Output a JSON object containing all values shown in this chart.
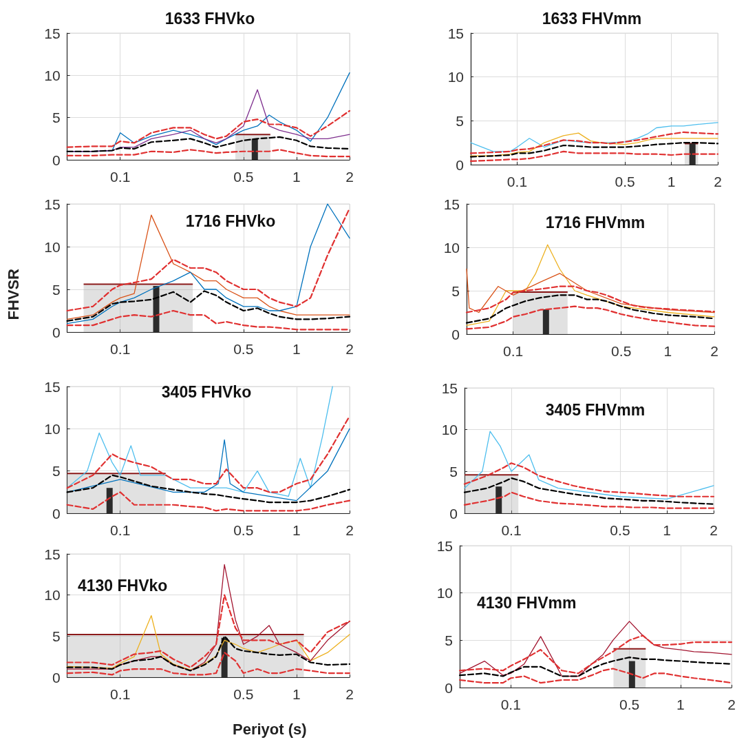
{
  "chart_data": [
    {
      "type": "line",
      "title": "1633 FHVko",
      "xlim": [
        0.05,
        2
      ],
      "ylim": [
        0,
        15
      ],
      "xticks": [
        0.1,
        0.5,
        1,
        2
      ],
      "yticks": [
        0,
        5,
        10,
        15
      ],
      "log": "x",
      "grid": true,
      "marker": "none",
      "x": [
        0.05,
        0.07,
        0.09,
        0.1,
        0.12,
        0.15,
        0.2,
        0.25,
        0.3,
        0.35,
        0.4,
        0.5,
        0.6,
        0.7,
        0.8,
        1,
        1.2,
        1.5,
        2
      ],
      "series": [
        {
          "type": "area",
          "color": "#8b1a1a",
          "x": [
            0.45,
            0.71
          ],
          "values": [
            3,
            3
          ]
        },
        {
          "type": "bar",
          "color": "#2b2b2b",
          "x": [
            0.58
          ],
          "values": [
            2.5
          ]
        },
        {
          "color": "#0072bd",
          "values": [
            1,
            1,
            1.1,
            3.2,
            2.0,
            2.8,
            3.5,
            3.0,
            2.5,
            1.8,
            2.5,
            3.5,
            4,
            5.3,
            4.5,
            3.5,
            2.2,
            5,
            10.3
          ]
        },
        {
          "color": "#7e2f8e",
          "values": [
            1,
            1,
            1.1,
            1.5,
            1.5,
            2.5,
            3,
            3.5,
            2.5,
            2,
            2.5,
            4,
            8.3,
            4,
            3.5,
            3,
            2.5,
            2.5,
            3
          ]
        },
        {
          "color": "#e03030",
          "line_style": "dashed",
          "values": [
            1.5,
            1.6,
            1.6,
            2.2,
            2.0,
            3.2,
            3.8,
            3.8,
            3.0,
            2.5,
            2.8,
            4.5,
            4.8,
            4.2,
            4.2,
            3.8,
            2.8,
            4,
            5.8
          ]
        },
        {
          "color": "#e03030",
          "line_style": "dashed",
          "values": [
            0.5,
            0.5,
            0.6,
            0.6,
            0.6,
            1.0,
            0.9,
            1.2,
            1.0,
            0.8,
            0.9,
            1.0,
            1.0,
            1.0,
            1.2,
            0.8,
            0.5,
            0.4,
            0.4
          ]
        },
        {
          "color": "#000000",
          "line_style": "dashed",
          "values": [
            1,
            1,
            1.1,
            1.4,
            1.3,
            2.1,
            2.3,
            2.5,
            2.0,
            1.5,
            1.8,
            2.3,
            2.5,
            2.6,
            2.7,
            2.3,
            1.6,
            1.4,
            1.3
          ]
        }
      ]
    },
    {
      "type": "line",
      "title": "1633 FHVmm",
      "xlim": [
        0.05,
        2
      ],
      "ylim": [
        0,
        15
      ],
      "xticks": [
        0.1,
        0.5,
        1,
        2
      ],
      "yticks": [
        0,
        5,
        10,
        15
      ],
      "log": "x",
      "grid": true,
      "marker": "none",
      "x": [
        0.05,
        0.07,
        0.09,
        0.1,
        0.12,
        0.15,
        0.2,
        0.25,
        0.3,
        0.35,
        0.4,
        0.5,
        0.6,
        0.7,
        0.8,
        1,
        1.2,
        1.5,
        2
      ],
      "series": [
        {
          "type": "area",
          "color": "#8b1a1a",
          "x": [
            1.22,
            1.49
          ],
          "values": [
            2.4,
            2.4
          ]
        },
        {
          "type": "bar",
          "color": "#2b2b2b",
          "x": [
            1.37
          ],
          "values": [
            2.4
          ]
        },
        {
          "color": "#4dbeee",
          "values": [
            2.5,
            1.5,
            1.5,
            2.0,
            3.0,
            2.0,
            2.8,
            2.6,
            2.5,
            2.5,
            2.5,
            2.6,
            3.0,
            3.5,
            4.2,
            4.4,
            4.4,
            4.6,
            4.8
          ]
        },
        {
          "color": "#edb120",
          "values": [
            1,
            1,
            1.2,
            1.4,
            1.5,
            2.5,
            3.3,
            3.6,
            2.7,
            2.5,
            2.4,
            2.3,
            2.5,
            2.8,
            3,
            3,
            3,
            3,
            3
          ]
        },
        {
          "color": "#e03030",
          "line_style": "dashed",
          "values": [
            1.3,
            1.4,
            1.5,
            1.7,
            1.8,
            2.2,
            2.8,
            2.7,
            2.5,
            2.5,
            2.4,
            2.6,
            2.8,
            3.0,
            3.2,
            3.5,
            3.7,
            3.6,
            3.5
          ]
        },
        {
          "color": "#e03030",
          "line_style": "dashed",
          "values": [
            0.4,
            0.5,
            0.6,
            0.6,
            0.7,
            1.0,
            1.5,
            1.3,
            1.3,
            1.3,
            1.3,
            1.3,
            1.2,
            1.2,
            1.2,
            1.1,
            1.2,
            1.2,
            1.2
          ]
        },
        {
          "color": "#000000",
          "line_style": "dashed",
          "values": [
            0.9,
            1.0,
            1.1,
            1.3,
            1.3,
            1.6,
            2.2,
            2.1,
            2.0,
            2.0,
            2.0,
            2.0,
            2.1,
            2.2,
            2.3,
            2.4,
            2.5,
            2.5,
            2.4
          ]
        }
      ]
    },
    {
      "type": "line",
      "title": "1716 FHVko",
      "ylabel": "FHVSR",
      "xlim": [
        0.05,
        2
      ],
      "ylim": [
        0,
        15
      ],
      "xticks": [
        0.1,
        0.5,
        1,
        2
      ],
      "yticks": [
        0,
        5,
        10,
        15
      ],
      "log": "x",
      "grid": true,
      "marker": "none",
      "x": [
        0.05,
        0.07,
        0.09,
        0.1,
        0.12,
        0.15,
        0.2,
        0.25,
        0.3,
        0.35,
        0.4,
        0.5,
        0.6,
        0.7,
        0.8,
        1,
        1.2,
        1.5,
        2
      ],
      "series": [
        {
          "type": "area",
          "color": "#8b1a1a",
          "x": [
            0.062,
            0.258
          ],
          "values": [
            5.6,
            5.6
          ]
        },
        {
          "type": "bar",
          "color": "#2b2b2b",
          "x": [
            0.16
          ],
          "values": [
            5.4
          ]
        },
        {
          "color": "#d95319",
          "values": [
            1.5,
            2,
            3.5,
            4,
            4.5,
            13.7,
            8,
            7,
            6,
            6,
            5,
            4,
            4,
            3,
            2.5,
            2,
            2,
            2,
            2
          ]
        },
        {
          "color": "#0072bd",
          "values": [
            1,
            1.5,
            3,
            3.5,
            4,
            5,
            6,
            7,
            5,
            5,
            4,
            3,
            3,
            2.5,
            2.5,
            3,
            10,
            15,
            11
          ]
        },
        {
          "color": "#e03030",
          "line_style": "dashed",
          "values": [
            2.5,
            3,
            5,
            5.5,
            5.8,
            6.2,
            8.5,
            7.5,
            7.5,
            7,
            6,
            5,
            5,
            4,
            3.5,
            3,
            4,
            9,
            14.5
          ]
        },
        {
          "color": "#e03030",
          "line_style": "dashed",
          "values": [
            0.8,
            0.8,
            1.5,
            1.8,
            2.0,
            1.8,
            2.5,
            2.0,
            2.0,
            1.0,
            1.2,
            0.8,
            0.6,
            0.6,
            0.5,
            0.3,
            0.3,
            0.3,
            0.3
          ]
        },
        {
          "color": "#000000",
          "line_style": "dashed",
          "values": [
            1.3,
            1.8,
            3.3,
            3.5,
            3.6,
            3.8,
            4.7,
            3.5,
            4.8,
            4.3,
            3.5,
            2.5,
            2.8,
            2.2,
            1.8,
            1.5,
            1.5,
            1.6,
            1.8
          ]
        }
      ]
    },
    {
      "type": "line",
      "title": "1716 FHVmm",
      "xlim": [
        0.05,
        2
      ],
      "ylim": [
        0,
        15
      ],
      "xticks": [
        0.1,
        0.5,
        1,
        2
      ],
      "yticks": [
        0,
        5,
        10,
        15
      ],
      "log": "x",
      "grid": true,
      "marker": "none",
      "x": [
        0.05,
        0.07,
        0.09,
        0.1,
        0.12,
        0.15,
        0.2,
        0.25,
        0.3,
        0.35,
        0.4,
        0.5,
        0.6,
        0.7,
        0.8,
        1,
        1.2,
        1.5,
        2
      ],
      "series": [
        {
          "type": "area",
          "color": "#8b1a1a",
          "x": [
            0.1,
            0.225
          ],
          "values": [
            4.85,
            4.85
          ]
        },
        {
          "type": "bar",
          "color": "#2b2b2b",
          "x": [
            0.163
          ],
          "values": [
            2.85
          ]
        },
        {
          "color": "#edb120",
          "x": [
            0.05,
            0.07,
            0.09,
            0.12,
            0.14,
            0.167,
            0.2,
            0.25,
            0.3,
            0.5,
            1,
            2
          ],
          "values": [
            1,
            1.5,
            5,
            5,
            7,
            10.3,
            7.5,
            5,
            4.5,
            3.2,
            2.5,
            2
          ]
        },
        {
          "color": "#d95319",
          "x": [
            0.05,
            0.052,
            0.06,
            0.08,
            0.1,
            0.15,
            0.2,
            0.3,
            0.5,
            1,
            2
          ],
          "values": [
            7.5,
            3,
            2.5,
            5.5,
            4.5,
            6,
            7,
            5,
            3.5,
            2.8,
            2.5
          ]
        },
        {
          "color": "#e03030",
          "line_style": "dashed",
          "values": [
            2.5,
            3,
            4,
            4.8,
            5,
            5.2,
            5.5,
            5.5,
            5,
            4.8,
            4.5,
            3.8,
            3.3,
            3.1,
            3.0,
            2.9,
            2.8,
            2.7,
            2.6
          ]
        },
        {
          "color": "#e03030",
          "line_style": "dashed",
          "values": [
            0.6,
            0.8,
            1.5,
            2,
            2.3,
            2.8,
            3,
            3.2,
            3.0,
            3.0,
            2.8,
            2.3,
            2.0,
            1.8,
            1.6,
            1.4,
            1.2,
            1.0,
            0.9
          ]
        },
        {
          "color": "#000000",
          "line_style": "dashed",
          "values": [
            1.3,
            1.8,
            3.0,
            3.3,
            3.8,
            4.2,
            4.5,
            4.5,
            4.0,
            4.0,
            3.8,
            3.2,
            2.8,
            2.6,
            2.4,
            2.2,
            2.1,
            2.0,
            1.8
          ]
        }
      ]
    },
    {
      "type": "line",
      "title": "3405 FHVko",
      "xlim": [
        0.05,
        2
      ],
      "ylim": [
        0,
        15
      ],
      "xticks": [
        0.1,
        0.5,
        1,
        2
      ],
      "yticks": [
        0,
        5,
        10,
        15
      ],
      "log": "x",
      "grid": true,
      "marker": "none",
      "x": [
        0.05,
        0.07,
        0.09,
        0.1,
        0.12,
        0.15,
        0.2,
        0.25,
        0.3,
        0.35,
        0.4,
        0.5,
        0.6,
        0.7,
        0.8,
        1,
        1.2,
        1.5,
        2
      ],
      "series": [
        {
          "type": "area",
          "color": "#8b1a1a",
          "x": [
            0.05,
            0.181
          ],
          "values": [
            4.7,
            4.7
          ]
        },
        {
          "type": "bar",
          "color": "#2b2b2b",
          "x": [
            0.087
          ],
          "values": [
            3
          ]
        },
        {
          "color": "#4dbeee",
          "x": [
            0.05,
            0.065,
            0.076,
            0.09,
            0.1,
            0.115,
            0.13,
            0.18,
            0.25,
            0.4,
            0.5,
            0.6,
            0.7,
            0.9,
            1.05,
            1.2,
            1.4,
            1.6
          ],
          "values": [
            3,
            5,
            9.5,
            6,
            4.5,
            8,
            4.5,
            4.5,
            3,
            3,
            2.5,
            5,
            2.5,
            2,
            6.5,
            3,
            9,
            15
          ]
        },
        {
          "color": "#0072bd",
          "x": [
            0.05,
            0.1,
            0.2,
            0.3,
            0.36,
            0.39,
            0.42,
            0.5,
            1,
            1.5,
            2
          ],
          "values": [
            2.5,
            4,
            2.5,
            2.5,
            3.5,
            8.7,
            3.5,
            2.5,
            1.5,
            5,
            10
          ]
        },
        {
          "color": "#e03030",
          "line_style": "dashed",
          "values": [
            3,
            4.5,
            7,
            6.5,
            6,
            5.5,
            4,
            4,
            3.5,
            3.5,
            5.2,
            3,
            3,
            2.5,
            2.5,
            3.5,
            4,
            7,
            11.5
          ]
        },
        {
          "color": "#e03030",
          "line_style": "dashed",
          "values": [
            1,
            0.5,
            2,
            2.5,
            1,
            1,
            1,
            0.8,
            0.7,
            0.3,
            0.5,
            0.3,
            0.3,
            0.3,
            0.3,
            0.3,
            0.5,
            1,
            1.5
          ]
        },
        {
          "color": "#000000",
          "line_style": "dashed",
          "values": [
            2.5,
            3.0,
            4.5,
            4.3,
            3.8,
            3.2,
            2.8,
            2.5,
            2.3,
            2.2,
            2.0,
            1.7,
            1.5,
            1.3,
            1.3,
            1.3,
            1.5,
            2.0,
            2.8
          ]
        }
      ]
    },
    {
      "type": "line",
      "title": "3405 FHVmm",
      "xlim": [
        0.05,
        2
      ],
      "ylim": [
        0,
        15
      ],
      "xticks": [
        0.1,
        0.5,
        1,
        2
      ],
      "yticks": [
        0,
        5,
        10,
        15
      ],
      "log": "x",
      "grid": true,
      "marker": "none",
      "x": [
        0.05,
        0.07,
        0.09,
        0.1,
        0.12,
        0.15,
        0.2,
        0.25,
        0.3,
        0.35,
        0.4,
        0.5,
        0.6,
        0.7,
        0.8,
        1,
        1.2,
        1.5,
        2
      ],
      "series": [
        {
          "type": "area",
          "color": "#8b1a1a",
          "x": [
            0.05,
            0.111
          ],
          "values": [
            4.6,
            4.6
          ]
        },
        {
          "type": "bar",
          "color": "#2b2b2b",
          "x": [
            0.083
          ],
          "values": [
            3.2
          ]
        },
        {
          "color": "#4dbeee",
          "x": [
            0.05,
            0.065,
            0.073,
            0.085,
            0.1,
            0.13,
            0.15,
            0.2,
            0.5,
            1,
            2
          ],
          "values": [
            3,
            5,
            9.8,
            8,
            5,
            7,
            4,
            3,
            2,
            1.7,
            3.3
          ]
        },
        {
          "color": "#e03030",
          "line_style": "dashed",
          "values": [
            3.5,
            4.5,
            5.5,
            6.0,
            5.5,
            4.5,
            3.8,
            3.3,
            3,
            2.8,
            2.6,
            2.5,
            2.4,
            2.3,
            2.2,
            2.1,
            2,
            2,
            2
          ]
        },
        {
          "color": "#e03030",
          "line_style": "dashed",
          "values": [
            1,
            1.5,
            2,
            2.5,
            2.0,
            1.5,
            1.2,
            1.1,
            1,
            0.9,
            0.8,
            0.8,
            0.7,
            0.7,
            0.7,
            0.6,
            0.6,
            0.6,
            0.6
          ]
        },
        {
          "color": "#000000",
          "line_style": "dashed",
          "values": [
            2.5,
            3,
            3.8,
            4.2,
            3.8,
            3.0,
            2.6,
            2.3,
            2.1,
            2.0,
            1.8,
            1.7,
            1.6,
            1.5,
            1.5,
            1.4,
            1.3,
            1.2,
            1.1
          ]
        }
      ]
    },
    {
      "type": "line",
      "title": "4130 FHVko",
      "xlabel": "Periyot (s)",
      "xlim": [
        0.05,
        2
      ],
      "ylim": [
        0,
        15
      ],
      "xticks": [
        0.1,
        0.5,
        1,
        2
      ],
      "yticks": [
        0,
        5,
        10,
        15
      ],
      "log": "x",
      "grid": true,
      "marker": "none",
      "x": [
        0.05,
        0.07,
        0.09,
        0.1,
        0.12,
        0.15,
        0.17,
        0.2,
        0.25,
        0.3,
        0.35,
        0.39,
        0.45,
        0.5,
        0.6,
        0.7,
        0.8,
        1,
        1.2,
        1.5,
        2
      ],
      "series": [
        {
          "type": "area",
          "color": "#8b1a1a",
          "x": [
            0.05,
            1.1
          ],
          "values": [
            5.2,
            5.2
          ]
        },
        {
          "type": "bar",
          "color": "#2b2b2b",
          "x": [
            0.39
          ],
          "values": [
            4.8
          ]
        },
        {
          "color": "#edb120",
          "values": [
            1.3,
            1.2,
            1.1,
            1.7,
            2.5,
            7.5,
            2.8,
            1.6,
            0.9,
            1.6,
            2.6,
            4.5,
            4,
            3.5,
            3,
            3.5,
            4,
            4.5,
            2,
            3,
            5.2
          ]
        },
        {
          "color": "#a2142f",
          "values": [
            1,
            1,
            1,
            1.5,
            2,
            2.5,
            2.5,
            1.5,
            0.8,
            1.8,
            4,
            13.7,
            7,
            4,
            5,
            6.3,
            4,
            3,
            2,
            4.5,
            6.8
          ]
        },
        {
          "color": "#e03030",
          "line_style": "dashed",
          "values": [
            1.8,
            1.8,
            1.5,
            2,
            2.8,
            3,
            3.2,
            2.2,
            1.2,
            2.5,
            4,
            10,
            6,
            4.5,
            4.5,
            4.5,
            4,
            4.5,
            3,
            5.5,
            6.8
          ]
        },
        {
          "color": "#e03030",
          "line_style": "dashed",
          "values": [
            0.5,
            0.6,
            0.3,
            0.8,
            1,
            1,
            1,
            0.5,
            0.3,
            0.3,
            0.5,
            3,
            2,
            0.5,
            1,
            0.5,
            0.5,
            1,
            0.8,
            0.5,
            0.5
          ]
        },
        {
          "color": "#000000",
          "line_style": "dashed",
          "values": [
            1.2,
            1.2,
            1.0,
            1.5,
            2.0,
            2.2,
            2.5,
            1.5,
            0.8,
            1.5,
            2.5,
            5,
            3.5,
            3.2,
            3.0,
            2.8,
            2.7,
            2.8,
            1.8,
            1.5,
            1.6
          ]
        }
      ]
    },
    {
      "type": "line",
      "title": "4130 FHVmm",
      "xlim": [
        0.05,
        2
      ],
      "ylim": [
        0,
        15
      ],
      "xticks": [
        0.1,
        0.5,
        1,
        2
      ],
      "yticks": [
        0,
        5,
        10,
        15
      ],
      "log": "x",
      "grid": true,
      "marker": "none",
      "x": [
        0.05,
        0.07,
        0.09,
        0.1,
        0.12,
        0.15,
        0.2,
        0.25,
        0.3,
        0.35,
        0.4,
        0.5,
        0.6,
        0.7,
        0.8,
        1,
        1.2,
        1.5,
        2
      ],
      "series": [
        {
          "type": "area",
          "color": "#8b1a1a",
          "x": [
            0.403,
            0.624
          ],
          "values": [
            4.1,
            4.1
          ]
        },
        {
          "type": "bar",
          "color": "#2b2b2b",
          "x": [
            0.518
          ],
          "values": [
            2.8
          ]
        },
        {
          "color": "#a2142f",
          "values": [
            1.5,
            2.8,
            1.3,
            1.5,
            2.5,
            5.4,
            1.2,
            1.2,
            2.5,
            3.5,
            5,
            7,
            5.5,
            4.5,
            4.2,
            4,
            3.8,
            3.7,
            3.5
          ]
        },
        {
          "color": "#e03030",
          "line_style": "dashed",
          "values": [
            1.8,
            2,
            1.8,
            2.3,
            3,
            4,
            1.8,
            1.5,
            2.5,
            3.2,
            3.8,
            5,
            5.5,
            4.5,
            4.5,
            4.6,
            4.8,
            4.8,
            4.8
          ]
        },
        {
          "color": "#e03030",
          "line_style": "dashed",
          "values": [
            0.8,
            0.5,
            0.5,
            1,
            1.2,
            0.5,
            0.8,
            0.8,
            1.3,
            1.8,
            2.0,
            1.5,
            1.0,
            1.5,
            1.5,
            1.2,
            1,
            0.8,
            0.5
          ]
        },
        {
          "color": "#000000",
          "line_style": "dashed",
          "values": [
            1.3,
            1.5,
            1.2,
            1.6,
            2.2,
            2.2,
            1.2,
            1.2,
            2.0,
            2.5,
            2.8,
            3.2,
            3.0,
            3.0,
            2.9,
            2.8,
            2.7,
            2.6,
            2.5
          ]
        }
      ]
    }
  ]
}
